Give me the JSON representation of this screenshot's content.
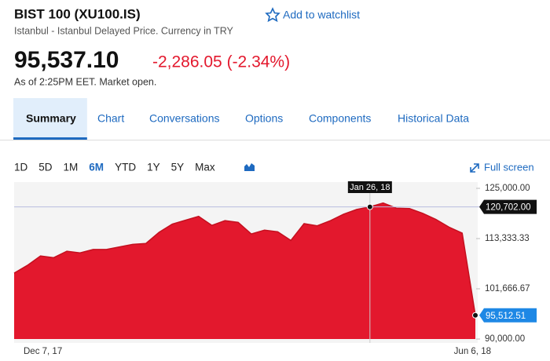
{
  "header": {
    "title": "BIST 100 (XU100.IS)",
    "subtitle": "Istanbul - Istanbul Delayed Price. Currency in TRY",
    "watchlist": "Add to watchlist",
    "price": "95,537.10",
    "change": "-2,286.05 (-2.34%)",
    "status": "As of 2:25PM EET. Market open."
  },
  "tabs": {
    "items": [
      "Summary",
      "Chart",
      "Conversations",
      "Options",
      "Components",
      "Historical Data"
    ],
    "active": 0
  },
  "ranges": {
    "items": [
      "1D",
      "5D",
      "1M",
      "6M",
      "YTD",
      "1Y",
      "5Y",
      "Max"
    ],
    "active": 3,
    "full_screen": "Full screen"
  },
  "chart_data": {
    "type": "area",
    "color": "#e3182d",
    "categories": [
      "Dec 7, 17",
      null,
      null,
      null,
      null,
      null,
      null,
      null,
      null,
      null,
      null,
      null,
      null,
      null,
      null,
      null,
      null,
      null,
      null,
      null,
      null,
      null,
      null,
      null,
      null,
      null,
      null,
      "Jan 26, 18",
      null,
      null,
      null,
      null,
      null,
      null,
      null,
      "Jun 6, 18"
    ],
    "values": [
      105300,
      107100,
      109300,
      108900,
      110400,
      110000,
      110800,
      110800,
      111400,
      112000,
      112200,
      114800,
      116700,
      117600,
      118500,
      116400,
      117500,
      117100,
      114400,
      115300,
      114900,
      112900,
      116800,
      116300,
      117500,
      119000,
      120100,
      120702,
      121600,
      120400,
      120300,
      119200,
      117800,
      116000,
      114600,
      95512.51
    ],
    "value_labels": [
      null,
      null,
      null,
      null,
      null,
      null,
      null,
      null,
      null,
      null,
      null,
      null,
      null,
      null,
      null,
      null,
      null,
      null,
      null,
      null,
      null,
      null,
      null,
      null,
      null,
      null,
      null,
      "120,702.00",
      null,
      null,
      null,
      null,
      null,
      null,
      null,
      "95,512.51"
    ],
    "ylim": [
      90000,
      125000
    ],
    "yticks": [
      {
        "value": 125000,
        "label": "125,000.00"
      },
      {
        "value": 113333.33,
        "label": "113,333.33"
      },
      {
        "value": 101666.67,
        "label": "101,666.67"
      },
      {
        "value": 90000,
        "label": "90,000.00"
      }
    ],
    "grid": false
  }
}
